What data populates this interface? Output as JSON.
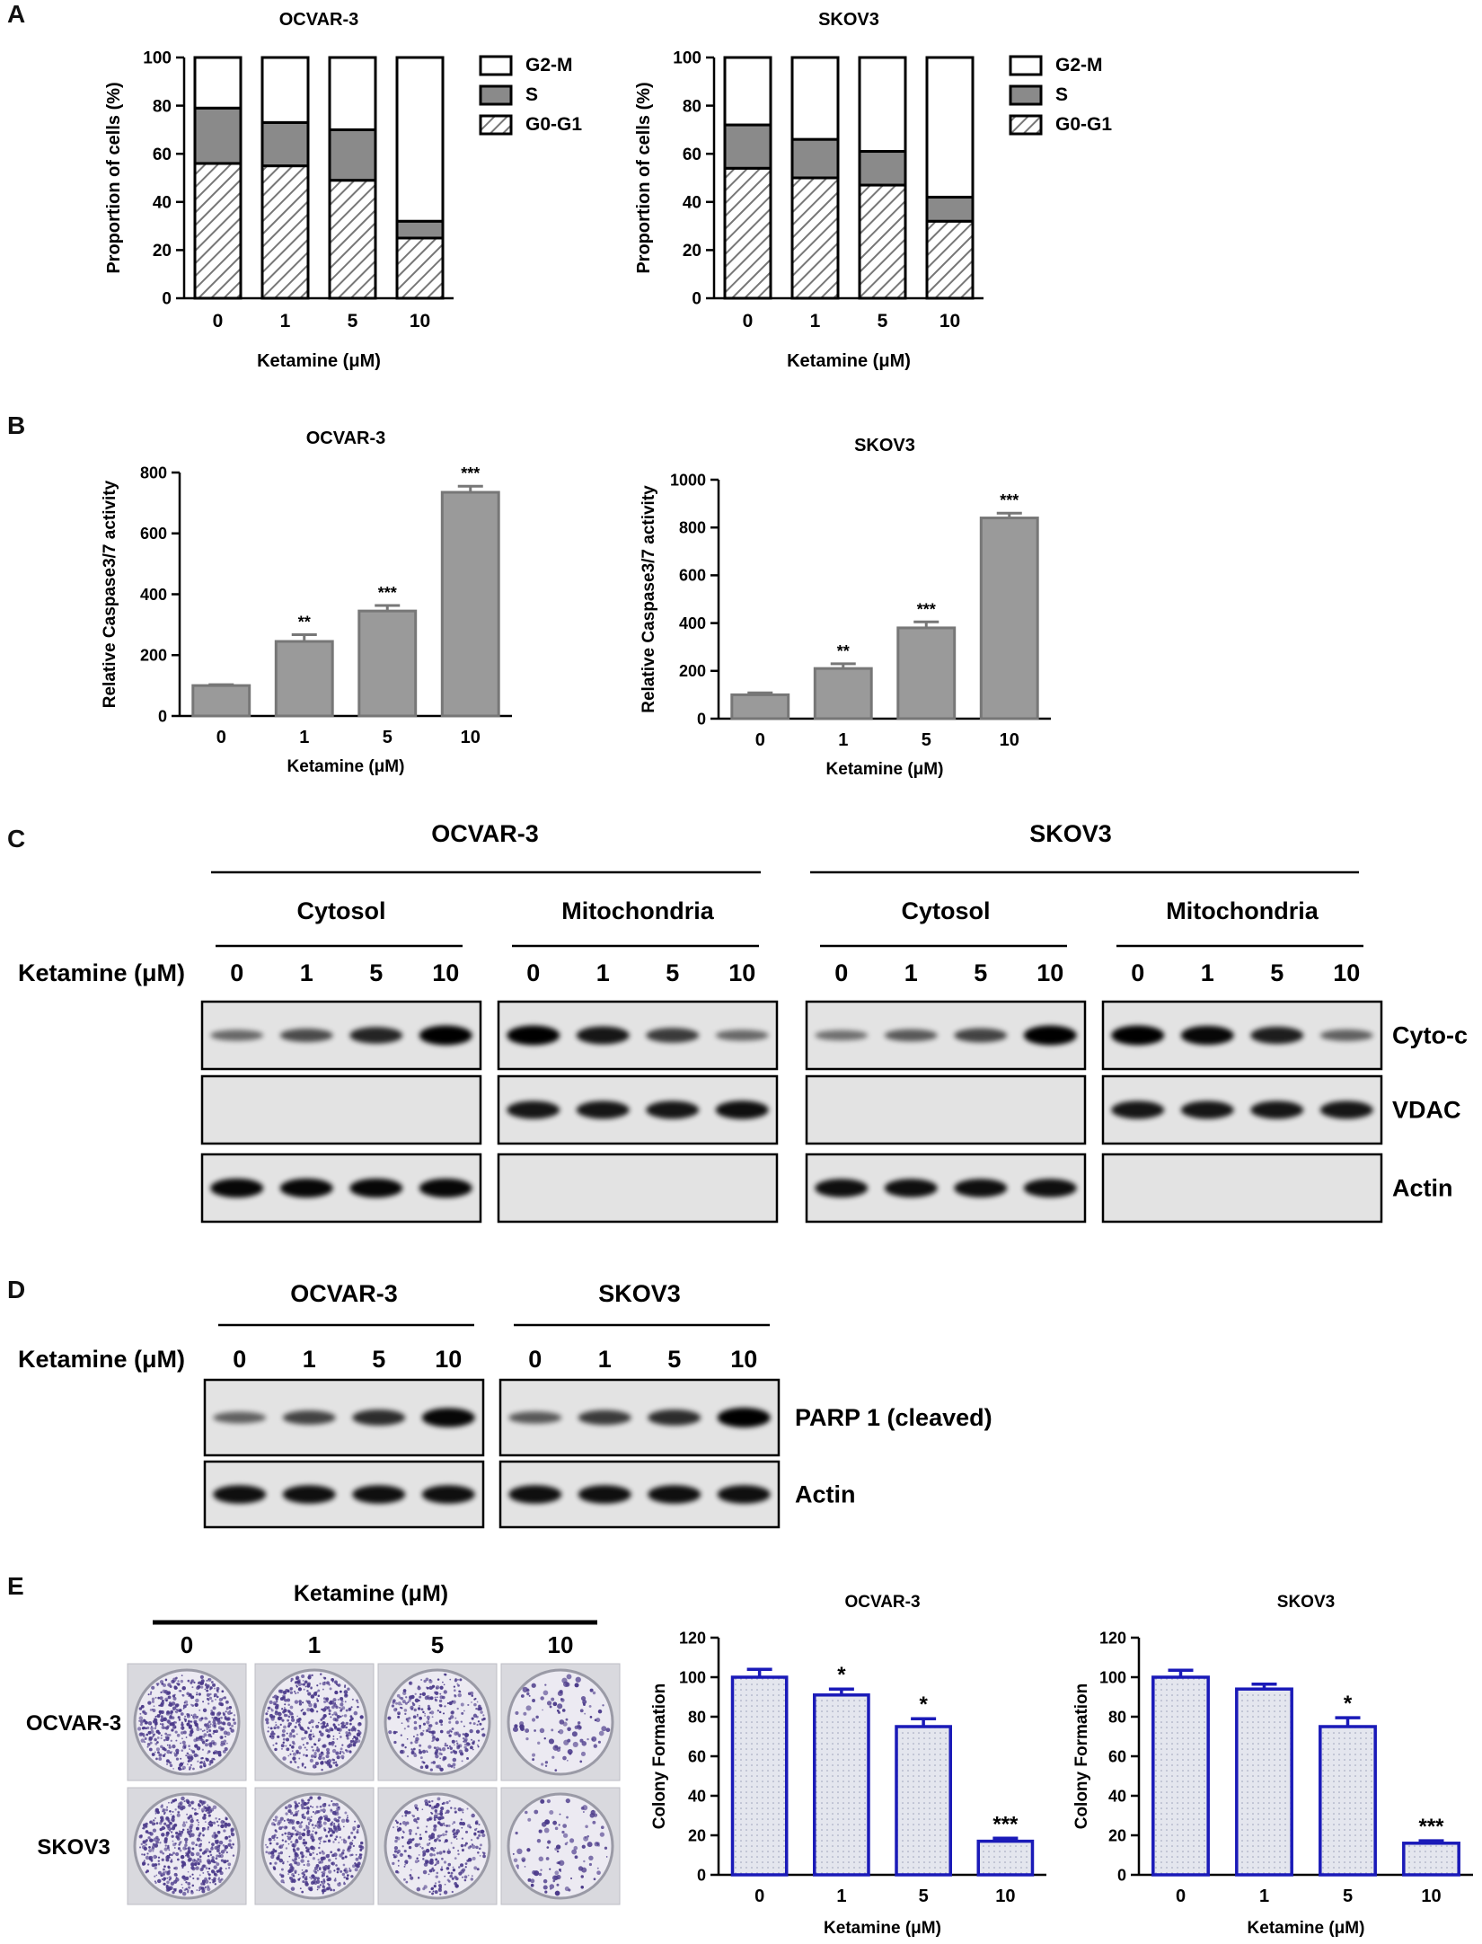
{
  "panels": {
    "A": "A",
    "B": "B",
    "C": "C",
    "D": "D",
    "E": "E"
  },
  "chart_data": [
    {
      "id": "A1",
      "type": "bar",
      "stacked": true,
      "title": "OCVAR-3",
      "xlabel": "Ketamine (μM)",
      "ylabel": "Proportion of cells (%)",
      "categories": [
        "0",
        "1",
        "5",
        "10"
      ],
      "ylim": [
        0,
        100
      ],
      "yticks": [
        "0",
        "20",
        "40",
        "60",
        "80",
        "100"
      ],
      "legend_position": "right",
      "series": [
        {
          "name": "G0-G1",
          "values": [
            56,
            55,
            49,
            25
          ]
        },
        {
          "name": "S",
          "values": [
            23,
            18,
            21,
            7
          ]
        },
        {
          "name": "G2-M",
          "values": [
            21,
            27,
            30,
            68
          ]
        }
      ]
    },
    {
      "id": "A2",
      "type": "bar",
      "stacked": true,
      "title": "SKOV3",
      "xlabel": "Ketamine (μM)",
      "ylabel": "Proportion of cells (%)",
      "categories": [
        "0",
        "1",
        "5",
        "10"
      ],
      "ylim": [
        0,
        100
      ],
      "yticks": [
        "0",
        "20",
        "40",
        "60",
        "80",
        "100"
      ],
      "legend_position": "right",
      "series": [
        {
          "name": "G0-G1",
          "values": [
            54,
            50,
            47,
            32
          ]
        },
        {
          "name": "S",
          "values": [
            18,
            16,
            14,
            10
          ]
        },
        {
          "name": "G2-M",
          "values": [
            28,
            34,
            39,
            58
          ]
        }
      ]
    },
    {
      "id": "B1",
      "type": "bar",
      "title": "OCVAR-3",
      "xlabel": "Ketamine (μM)",
      "ylabel": "Relative Caspase3/7 activity",
      "categories": [
        "0",
        "1",
        "5",
        "10"
      ],
      "values": [
        100,
        245,
        345,
        735
      ],
      "errors": [
        3,
        22,
        18,
        20
      ],
      "significance": [
        "",
        "**",
        "***",
        "***"
      ],
      "ylim": [
        0,
        800
      ],
      "yticks": [
        "0",
        "200",
        "400",
        "600",
        "800"
      ]
    },
    {
      "id": "B2",
      "type": "bar",
      "title": "SKOV3",
      "xlabel": "Ketamine (μM)",
      "ylabel": "Relative Caspase3/7 activity",
      "categories": [
        "0",
        "1",
        "5",
        "10"
      ],
      "values": [
        100,
        210,
        380,
        840
      ],
      "errors": [
        8,
        20,
        25,
        20
      ],
      "significance": [
        "",
        "**",
        "***",
        "***"
      ],
      "ylim": [
        0,
        1000
      ],
      "yticks": [
        "0",
        "200",
        "400",
        "600",
        "800",
        "1000"
      ]
    },
    {
      "id": "E1",
      "type": "bar",
      "title": "OCVAR-3",
      "xlabel": "Ketamine (μM)",
      "ylabel": "Colony Formation",
      "categories": [
        "0",
        "1",
        "5",
        "10"
      ],
      "values": [
        100,
        91,
        75,
        17
      ],
      "errors": [
        4,
        3,
        4,
        1.5
      ],
      "significance": [
        "",
        "*",
        "*",
        "***"
      ],
      "ylim": [
        0,
        120
      ],
      "yticks": [
        "0",
        "20",
        "40",
        "60",
        "80",
        "100",
        "120"
      ]
    },
    {
      "id": "E2",
      "type": "bar",
      "title": "SKOV3",
      "xlabel": "Ketamine (μM)",
      "ylabel": "Colony Formation",
      "categories": [
        "0",
        "1",
        "5",
        "10"
      ],
      "values": [
        100,
        94,
        75,
        16
      ],
      "errors": [
        3.5,
        2.5,
        4.5,
        1.2
      ],
      "significance": [
        "",
        "",
        "*",
        "***"
      ],
      "ylim": [
        0,
        120
      ],
      "yticks": [
        "0",
        "20",
        "40",
        "60",
        "80",
        "100",
        "120"
      ]
    }
  ],
  "blots": {
    "C": {
      "cell_lines": [
        "OCVAR-3",
        "SKOV3"
      ],
      "fractions": [
        "Cytosol",
        "Mitochondria",
        "Cytosol",
        "Mitochondria"
      ],
      "row_label": "Ketamine (μM)",
      "lanes": [
        "0",
        "1",
        "5",
        "10"
      ],
      "proteins": [
        "Cyto-c",
        "VDAC",
        "Actin"
      ],
      "intensity": {
        "Cyto-c": [
          [
            0.3,
            0.5,
            0.75,
            1.0
          ],
          [
            1.0,
            0.85,
            0.6,
            0.3
          ],
          [
            0.25,
            0.4,
            0.55,
            1.0
          ],
          [
            1.0,
            0.95,
            0.8,
            0.35
          ]
        ],
        "VDAC": [
          [
            0,
            0,
            0,
            0
          ],
          [
            0.85,
            0.85,
            0.85,
            0.9
          ],
          [
            0,
            0,
            0,
            0
          ],
          [
            0.85,
            0.85,
            0.85,
            0.85
          ]
        ],
        "Actin": [
          [
            0.95,
            0.95,
            0.95,
            0.95
          ],
          [
            0,
            0,
            0,
            0
          ],
          [
            0.9,
            0.9,
            0.9,
            0.9
          ],
          [
            0,
            0,
            0,
            0
          ]
        ]
      }
    },
    "D": {
      "cell_lines": [
        "OCVAR-3",
        "SKOV3"
      ],
      "row_label": "Ketamine (μM)",
      "lanes": [
        "0",
        "1",
        "5",
        "10"
      ],
      "proteins": [
        "PARP 1 (cleaved)",
        "Actin"
      ],
      "intensity": {
        "PARP 1 (cleaved)": [
          [
            0.35,
            0.55,
            0.7,
            0.95
          ],
          [
            0.4,
            0.6,
            0.7,
            1.0
          ]
        ],
        "Actin": [
          [
            0.9,
            0.9,
            0.9,
            0.9
          ],
          [
            0.9,
            0.9,
            0.9,
            0.9
          ]
        ]
      }
    }
  },
  "colony": {
    "header": "Ketamine (μM)",
    "lanes": [
      "0",
      "1",
      "5",
      "10"
    ],
    "rows": [
      "OCVAR-3",
      "SKOV3"
    ],
    "density": [
      [
        1.0,
        0.85,
        0.6,
        0.2
      ],
      [
        1.0,
        0.9,
        0.6,
        0.2
      ]
    ]
  },
  "colors": {
    "bar_gray": "#9a9a9a",
    "bar_edge_gray": "#777777",
    "s_phase": "#8a8a8a",
    "colony_edge": "#1a1ab8",
    "colony_fill": "#e4e6ee",
    "blot_bg": "#e3e3e3",
    "crystal_violet": "#4b3a8a"
  }
}
